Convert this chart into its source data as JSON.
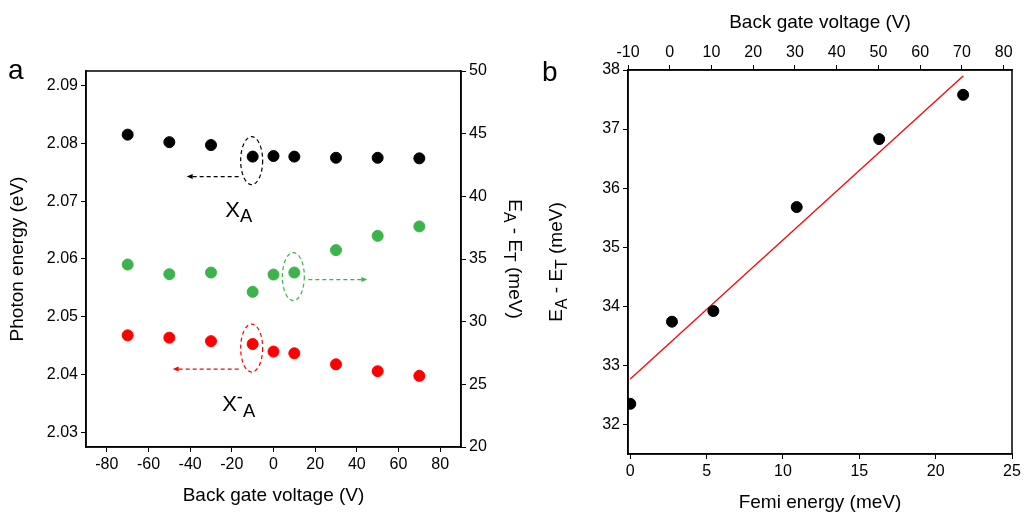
{
  "chart_data": [
    {
      "type": "scatter",
      "xlabel": "Back gate voltage (V)",
      "ylabel": "Photon energy (eV)",
      "y2label": "E$_{A}$ - E$_{T}$ (meV)",
      "xlim": [
        -90,
        90
      ],
      "xticks": [
        -80,
        -60,
        -40,
        -20,
        0,
        20,
        40,
        60,
        80
      ],
      "ylim": [
        2.0275,
        2.0925
      ],
      "yticks": [
        2.03,
        2.04,
        2.05,
        2.06,
        2.07,
        2.08,
        2.09
      ],
      "y2lim": [
        20,
        50
      ],
      "y2ticks": [
        20,
        25,
        30,
        35,
        40,
        45,
        50
      ],
      "marker": "circle",
      "annotations": [
        "a",
        "X$_{A}$",
        "X$^{-}$$_{A}$"
      ],
      "series": [
        {
          "color": "#000000",
          "x": [
            -70,
            -50,
            -30,
            -10,
            0,
            10,
            30,
            50,
            70
          ],
          "values": [
            2.0815,
            2.0802,
            2.0797,
            2.0777,
            2.0778,
            2.0777,
            2.0775,
            2.0775,
            2.0774
          ]
        },
        {
          "color": "#3cb44b",
          "axis": "y2",
          "x": [
            -70,
            -50,
            -30,
            -10,
            0,
            10,
            30,
            50,
            70
          ],
          "values": [
            34.56,
            33.79,
            33.92,
            32.38,
            33.76,
            33.92,
            35.71,
            36.85,
            37.6
          ]
        },
        {
          "color": "#ff0000",
          "x": [
            -70,
            -50,
            -30,
            -10,
            0,
            10,
            30,
            50,
            70
          ],
          "values": [
            2.0468,
            2.0464,
            2.0458,
            2.0453,
            2.044,
            2.0437,
            2.0418,
            2.0406,
            2.0398
          ]
        }
      ]
    },
    {
      "type": "scatter",
      "xlabel": "Femi energy (meV)",
      "ylabel": "E$_{A}$ - E$_{T}$ (meV)",
      "x2label": "Back gate voltage (V)",
      "xlim": [
        -0.15,
        25
      ],
      "xticks": [
        0,
        5,
        10,
        15,
        20,
        25
      ],
      "x2lim": [
        -10,
        82
      ],
      "x2ticks": [
        -10,
        0,
        10,
        20,
        30,
        40,
        50,
        60,
        70,
        80
      ],
      "ylim": [
        31.5,
        38
      ],
      "yticks": [
        32,
        33,
        34,
        35,
        36,
        37,
        38
      ],
      "marker": "circle",
      "annotations": [
        "b"
      ],
      "series": [
        {
          "color": "#000000",
          "x": [
            0,
            2.73,
            5.44,
            10.9,
            16.3,
            21.8
          ],
          "values": [
            32.35,
            33.74,
            33.92,
            35.68,
            36.83,
            37.58
          ]
        },
        {
          "type": "line",
          "marker": "none",
          "color": "#ff0000",
          "x": [
            0,
            21.8
          ],
          "values": [
            32.77,
            37.9
          ]
        }
      ]
    }
  ]
}
